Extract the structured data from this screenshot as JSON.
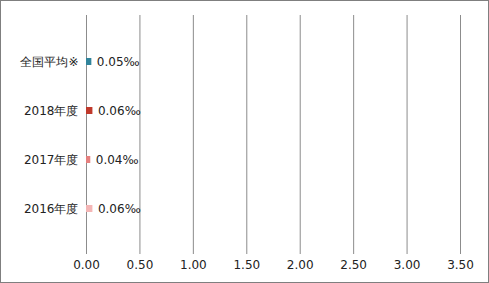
{
  "chart_data": {
    "type": "bar",
    "orientation": "horizontal",
    "categories": [
      "全国平均※",
      "2018年度",
      "2017年度",
      "2016年度"
    ],
    "values": [
      0.05,
      0.06,
      0.04,
      0.06
    ],
    "value_labels": [
      "0.05‰",
      "0.06‰",
      "0.04‰",
      "0.06‰"
    ],
    "data_labels": true,
    "colors": [
      "#31849b",
      "#c0392b",
      "#e6807f",
      "#f4b6b6"
    ],
    "xlim": [
      0,
      3.5
    ],
    "xticks": [
      {
        "value": 0,
        "label": "0.00"
      },
      {
        "value": 0.5,
        "label": "0.50"
      },
      {
        "value": 1,
        "label": "1.00"
      },
      {
        "value": 1.5,
        "label": "1.50"
      },
      {
        "value": 2,
        "label": "2.00"
      },
      {
        "value": 2.5,
        "label": "2.50"
      },
      {
        "value": 3,
        "label": "3.00"
      },
      {
        "value": 3.5,
        "label": "3.50"
      }
    ],
    "grid": true
  }
}
